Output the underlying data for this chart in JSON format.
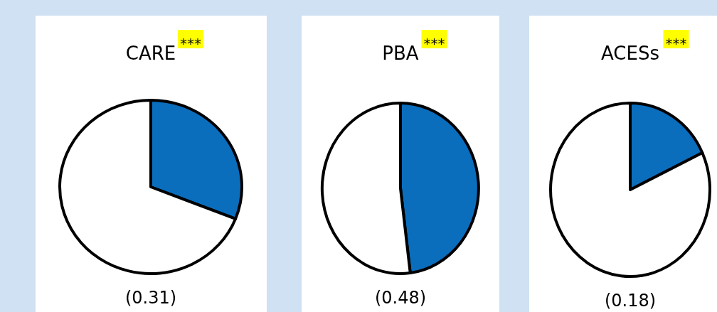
{
  "chart_data": [
    {
      "type": "pie",
      "title": "CARE",
      "annotations": [
        "***",
        "(0.31)"
      ],
      "categories": [
        null,
        null
      ],
      "values": [
        31,
        69
      ],
      "colors": [
        "#0a6ebd",
        "#ffffff"
      ]
    },
    {
      "type": "pie",
      "title": "PBA",
      "annotations": [
        "***",
        "(0.48)"
      ],
      "categories": [
        null,
        null
      ],
      "values": [
        48,
        52
      ],
      "colors": [
        "#0a6ebd",
        "#ffffff"
      ]
    },
    {
      "type": "pie",
      "title": "ACESs",
      "annotations": [
        "***",
        "(0.18)"
      ],
      "categories": [
        null,
        null
      ],
      "values": [
        18,
        82
      ],
      "colors": [
        "#0a6ebd",
        "#ffffff"
      ]
    }
  ]
}
